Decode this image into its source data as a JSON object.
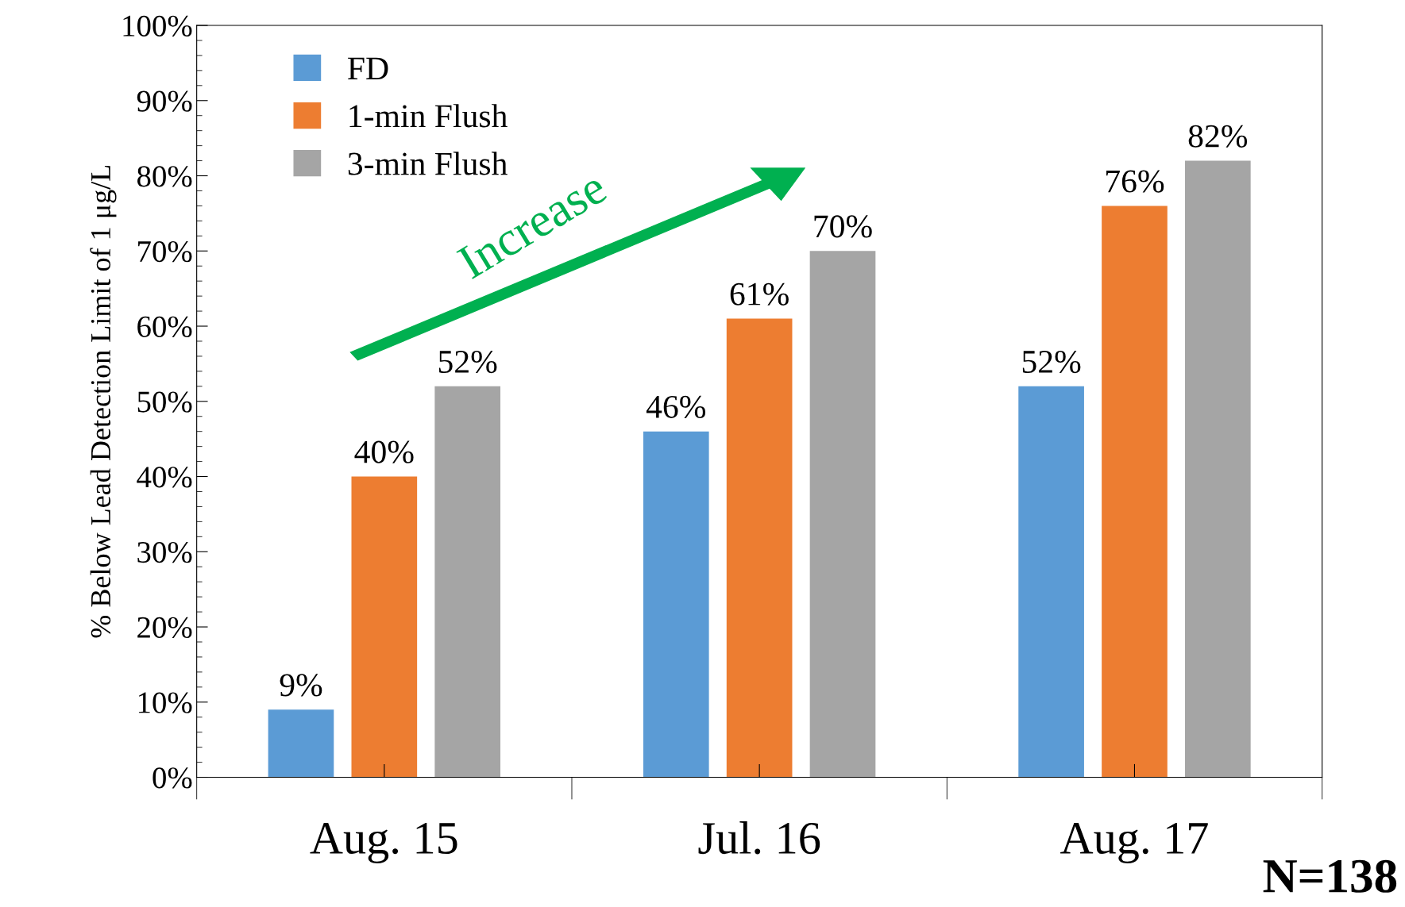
{
  "chart_data": {
    "type": "bar",
    "ylabel": "% Below Lead Detection Limit of 1 μg/L",
    "categories": [
      "Aug. 15",
      "Jul. 16",
      "Aug. 17"
    ],
    "series": [
      {
        "name": "FD",
        "color": "#5b9bd5",
        "values": [
          9,
          46,
          52
        ]
      },
      {
        "name": "1-min Flush",
        "color": "#ed7d31",
        "values": [
          40,
          61,
          76
        ]
      },
      {
        "name": "3-min Flush",
        "color": "#a5a5a5",
        "values": [
          52,
          70,
          82
        ]
      }
    ],
    "ylim": [
      0,
      100
    ],
    "yticks": [
      {
        "value": 0,
        "label": "0%"
      },
      {
        "value": 10,
        "label": "10%"
      },
      {
        "value": 20,
        "label": "20%"
      },
      {
        "value": 30,
        "label": "30%"
      },
      {
        "value": 40,
        "label": "40%"
      },
      {
        "value": 50,
        "label": "50%"
      },
      {
        "value": 60,
        "label": "60%"
      },
      {
        "value": 70,
        "label": "70%"
      },
      {
        "value": 80,
        "label": "80%"
      },
      {
        "value": 90,
        "label": "90%"
      },
      {
        "value": 100,
        "label": "100%"
      }
    ],
    "value_labels": [
      [
        "9%",
        "46%",
        "52%"
      ],
      [
        "40%",
        "61%",
        "76%"
      ],
      [
        "52%",
        "70%",
        "82%"
      ]
    ],
    "legend": "top left",
    "grid": false,
    "annotations": [
      "Increase",
      "N=138"
    ]
  }
}
